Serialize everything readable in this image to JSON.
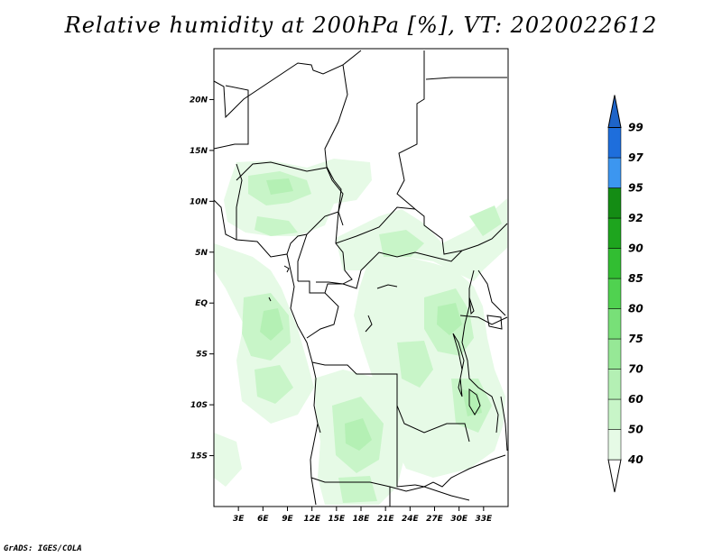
{
  "title": "Relative humidity at 200hPa [%], VT: 2020022612",
  "credit": "GrADS: IGES/COLA",
  "map": {
    "lon_range": [
      0,
      36
    ],
    "lat_range": [
      -20,
      25
    ],
    "lat_ticks": [
      {
        "value": 20,
        "label": "20N"
      },
      {
        "value": 15,
        "label": "15N"
      },
      {
        "value": 10,
        "label": "10N"
      },
      {
        "value": 5,
        "label": "5N"
      },
      {
        "value": 0,
        "label": "EQ"
      },
      {
        "value": -5,
        "label": "5S"
      },
      {
        "value": -10,
        "label": "10S"
      },
      {
        "value": -15,
        "label": "15S"
      }
    ],
    "lon_ticks": [
      {
        "value": 3,
        "label": "3E"
      },
      {
        "value": 6,
        "label": "6E"
      },
      {
        "value": 9,
        "label": "9E"
      },
      {
        "value": 12,
        "label": "12E"
      },
      {
        "value": 15,
        "label": "15E"
      },
      {
        "value": 18,
        "label": "18E"
      },
      {
        "value": 21,
        "label": "21E"
      },
      {
        "value": 24,
        "label": "24E"
      },
      {
        "value": 27,
        "label": "27E"
      },
      {
        "value": 30,
        "label": "30E"
      },
      {
        "value": 33,
        "label": "33E"
      }
    ]
  },
  "colorbar": {
    "levels": [
      {
        "label": "40",
        "color": "#ffffff"
      },
      {
        "label": "50",
        "color": "#e6fae6"
      },
      {
        "label": "60",
        "color": "#c8f5c8"
      },
      {
        "label": "70",
        "color": "#b4f0b4"
      },
      {
        "label": "75",
        "color": "#96e896"
      },
      {
        "label": "80",
        "color": "#78e078"
      },
      {
        "label": "85",
        "color": "#50d250"
      },
      {
        "label": "90",
        "color": "#32be32"
      },
      {
        "label": "92",
        "color": "#1ea51e"
      },
      {
        "label": "95",
        "color": "#148c14"
      },
      {
        "label": "97",
        "color": "#3c96f0"
      },
      {
        "label": "99",
        "color": "#1e6edc"
      }
    ],
    "top_color": "#1e64c8"
  },
  "colors": {
    "light": "#e6fae6",
    "mid": "#c8f5c8",
    "dark": "#b4f0b4"
  }
}
